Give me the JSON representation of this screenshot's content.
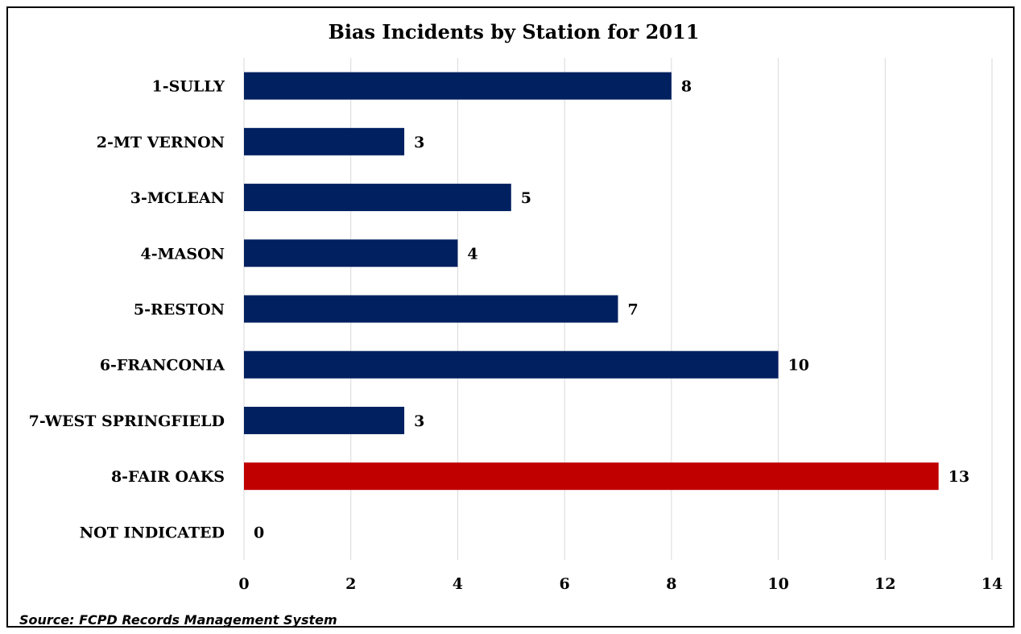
{
  "chart_data": {
    "type": "bar",
    "orientation": "horizontal",
    "title": "Bias Incidents by Station for 2011",
    "categories": [
      "1-SULLY",
      "2-MT VERNON",
      "3-MCLEAN",
      "4-MASON",
      "5-RESTON",
      "6-FRANCONIA",
      "7-WEST SPRINGFIELD",
      "8-FAIR OAKS",
      "NOT INDICATED"
    ],
    "values": [
      8,
      3,
      5,
      4,
      7,
      10,
      3,
      13,
      0
    ],
    "bar_colors": [
      "#002060",
      "#002060",
      "#002060",
      "#002060",
      "#002060",
      "#002060",
      "#002060",
      "#c00000",
      "#002060"
    ],
    "xlim": [
      0,
      14
    ],
    "xticks": [
      "0",
      "2",
      "4",
      "6",
      "8",
      "10",
      "12",
      "14"
    ],
    "xlabel": "",
    "ylabel": "",
    "grid": "vertical",
    "data_labels": true
  },
  "source_note": "Source: FCPD Records Management System"
}
